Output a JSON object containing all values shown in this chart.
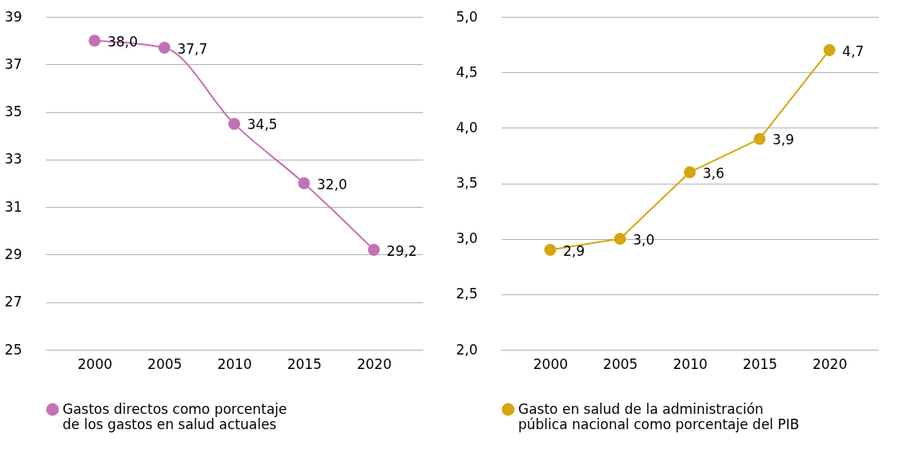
{
  "chart_data": [
    {
      "type": "line",
      "categories": [
        "2000",
        "2005",
        "2010",
        "2015",
        "2020"
      ],
      "series": [
        {
          "name": "Gastos directos como porcentaje de los gastos en salud actuales",
          "color": "#c272b4",
          "values": [
            38.0,
            37.7,
            34.5,
            32.0,
            29.2
          ],
          "value_labels": [
            "38,0",
            "37,7",
            "34,5",
            "32,0",
            "29,2"
          ]
        }
      ],
      "ylim": [
        25,
        39
      ],
      "yticks": [
        25,
        27,
        29,
        31,
        33,
        35,
        37,
        39
      ],
      "grid": "y",
      "legend": "bottom",
      "marker": "circle",
      "line_style": "solid"
    },
    {
      "type": "line",
      "categories": [
        "2000",
        "2005",
        "2010",
        "2015",
        "2020"
      ],
      "series": [
        {
          "name": "Gasto en salud de la administración pública nacional como porcentaje del PIB",
          "color": "#d6a50f",
          "values": [
            2.9,
            3.0,
            3.6,
            3.9,
            4.7
          ],
          "value_labels": [
            "2,9",
            "3,0",
            "3,6",
            "3,9",
            "4,7"
          ]
        }
      ],
      "ylim": [
        2.0,
        5.0
      ],
      "yticks": [
        {
          "value": 2.0,
          "label": "2,0"
        },
        {
          "value": 2.5,
          "label": "2,5"
        },
        {
          "value": 3.0,
          "label": "3,0"
        },
        {
          "value": 3.5,
          "label": "3,5"
        },
        {
          "value": 4.0,
          "label": "4,0"
        },
        {
          "value": 4.5,
          "label": "4,5"
        },
        {
          "value": 5.0,
          "label": "5,0"
        }
      ],
      "grid": "y",
      "legend": "bottom",
      "marker": "circle",
      "line_style": "solid"
    }
  ]
}
